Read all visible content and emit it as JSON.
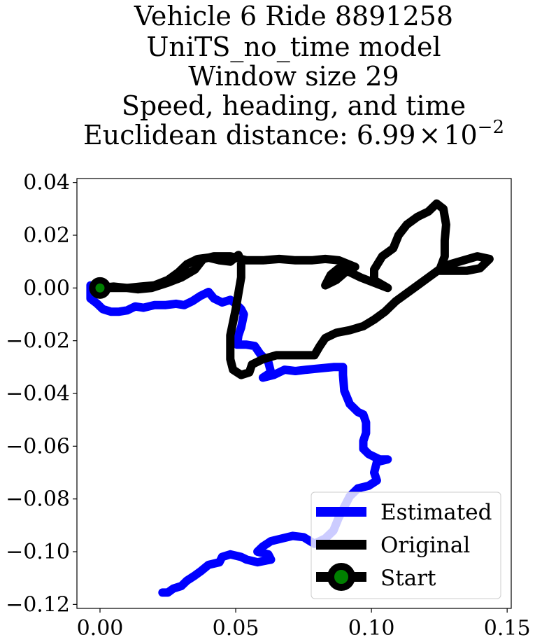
{
  "chart_data": {
    "type": "line",
    "title_lines": [
      "Vehicle 6 Ride 8891258",
      "UniTS_no_time model",
      "Window size 29",
      "Speed, heading, and time"
    ],
    "title_last_prefix": "Euclidean distance: ",
    "title_last_mantissa": "6.99",
    "title_last_times": "×",
    "title_last_base": "10",
    "title_last_exponent": "−2",
    "xlim": [
      -0.0085,
      0.1515
    ],
    "ylim": [
      -0.1215,
      0.0415
    ],
    "x_ticks": [
      {
        "value": 0.0,
        "label": "0.00"
      },
      {
        "value": 0.05,
        "label": "0.05"
      },
      {
        "value": 0.1,
        "label": "0.10"
      },
      {
        "value": 0.15,
        "label": "0.15"
      }
    ],
    "y_ticks": [
      {
        "value": 0.04,
        "label": "0.04"
      },
      {
        "value": 0.02,
        "label": "0.02"
      },
      {
        "value": 0.0,
        "label": "0.00"
      },
      {
        "value": -0.02,
        "label": "−0.02"
      },
      {
        "value": -0.04,
        "label": "−0.04"
      },
      {
        "value": -0.06,
        "label": "−0.06"
      },
      {
        "value": -0.08,
        "label": "−0.08"
      },
      {
        "value": -0.1,
        "label": "−0.10"
      },
      {
        "value": -0.12,
        "label": "−0.12"
      }
    ],
    "grid": false,
    "legend_position": "lower right",
    "series": [
      {
        "name": "Estimated",
        "color": "#0000ff",
        "points": [
          [
            -0.0035,
            0.001
          ],
          [
            -0.0035,
            -0.004
          ],
          [
            -0.001,
            -0.006
          ],
          [
            0.001,
            -0.008
          ],
          [
            0.004,
            -0.009
          ],
          [
            0.007,
            -0.009
          ],
          [
            0.01,
            -0.0085
          ],
          [
            0.013,
            -0.007
          ],
          [
            0.016,
            -0.0075
          ],
          [
            0.02,
            -0.0065
          ],
          [
            0.024,
            -0.0065
          ],
          [
            0.028,
            -0.006
          ],
          [
            0.031,
            -0.0065
          ],
          [
            0.034,
            -0.005
          ],
          [
            0.037,
            -0.003
          ],
          [
            0.04,
            -0.0015
          ],
          [
            0.042,
            -0.004
          ],
          [
            0.045,
            -0.0055
          ],
          [
            0.048,
            -0.0045
          ],
          [
            0.05,
            -0.006
          ],
          [
            0.052,
            -0.008
          ],
          [
            0.053,
            -0.01
          ],
          [
            0.052,
            -0.015
          ],
          [
            0.051,
            -0.018
          ],
          [
            0.0505,
            -0.0215
          ],
          [
            0.054,
            -0.0215
          ],
          [
            0.057,
            -0.022
          ],
          [
            0.059,
            -0.025
          ],
          [
            0.062,
            -0.028
          ],
          [
            0.063,
            -0.032
          ],
          [
            0.06,
            -0.034
          ],
          [
            0.064,
            -0.033
          ],
          [
            0.068,
            -0.031
          ],
          [
            0.072,
            -0.0315
          ],
          [
            0.076,
            -0.031
          ],
          [
            0.081,
            -0.0305
          ],
          [
            0.086,
            -0.03
          ],
          [
            0.0895,
            -0.03
          ],
          [
            0.0895,
            -0.033
          ],
          [
            0.09,
            -0.039
          ],
          [
            0.092,
            -0.044
          ],
          [
            0.095,
            -0.047
          ],
          [
            0.097,
            -0.048
          ],
          [
            0.098,
            -0.051
          ],
          [
            0.098,
            -0.055
          ],
          [
            0.097,
            -0.058
          ],
          [
            0.097,
            -0.061
          ],
          [
            0.099,
            -0.063
          ],
          [
            0.103,
            -0.065
          ],
          [
            0.106,
            -0.065
          ],
          [
            0.102,
            -0.066
          ],
          [
            0.101,
            -0.07
          ],
          [
            0.102,
            -0.073
          ],
          [
            0.099,
            -0.075
          ],
          [
            0.095,
            -0.076
          ],
          [
            0.092,
            -0.079
          ],
          [
            0.09,
            -0.083
          ],
          [
            0.088,
            -0.087
          ],
          [
            0.086,
            -0.092
          ],
          [
            0.083,
            -0.095
          ],
          [
            0.079,
            -0.097
          ],
          [
            0.075,
            -0.0945
          ],
          [
            0.071,
            -0.094
          ],
          [
            0.067,
            -0.095
          ],
          [
            0.063,
            -0.096
          ],
          [
            0.06,
            -0.098
          ],
          [
            0.058,
            -0.1
          ],
          [
            0.062,
            -0.101
          ],
          [
            0.063,
            -0.103
          ],
          [
            0.058,
            -0.104
          ],
          [
            0.054,
            -0.103
          ],
          [
            0.052,
            -0.102
          ],
          [
            0.048,
            -0.101
          ],
          [
            0.045,
            -0.102
          ],
          [
            0.044,
            -0.104
          ],
          [
            0.04,
            -0.105
          ],
          [
            0.037,
            -0.1075
          ],
          [
            0.035,
            -0.109
          ],
          [
            0.032,
            -0.111
          ],
          [
            0.03,
            -0.113
          ],
          [
            0.027,
            -0.114
          ],
          [
            0.025,
            -0.1155
          ],
          [
            0.023,
            -0.1155
          ]
        ]
      },
      {
        "name": "Original",
        "color": "#000000",
        "points": [
          [
            0.0,
            0.0
          ],
          [
            0.005,
            0.0005
          ],
          [
            0.01,
            0.0
          ],
          [
            0.015,
            0.0005
          ],
          [
            0.02,
            0.001
          ],
          [
            0.025,
            0.003
          ],
          [
            0.029,
            0.006
          ],
          [
            0.032,
            0.009
          ],
          [
            0.036,
            0.011
          ],
          [
            0.04,
            0.0115
          ],
          [
            0.044,
            0.0105
          ],
          [
            0.048,
            0.01
          ],
          [
            0.051,
            0.0125
          ],
          [
            0.052,
            0.01
          ],
          [
            0.052,
            0.004
          ],
          [
            0.051,
            -0.002
          ],
          [
            0.05,
            -0.008
          ],
          [
            0.049,
            -0.013
          ],
          [
            0.048,
            -0.018
          ],
          [
            0.048,
            -0.022
          ],
          [
            0.048,
            -0.027
          ],
          [
            0.049,
            -0.031
          ],
          [
            0.052,
            -0.033
          ],
          [
            0.055,
            -0.032
          ],
          [
            0.056,
            -0.029
          ],
          [
            0.06,
            -0.027
          ],
          [
            0.065,
            -0.0255
          ],
          [
            0.07,
            -0.0255
          ],
          [
            0.075,
            -0.0255
          ],
          [
            0.079,
            -0.0255
          ],
          [
            0.081,
            -0.022
          ],
          [
            0.083,
            -0.019
          ],
          [
            0.087,
            -0.017
          ],
          [
            0.092,
            -0.016
          ],
          [
            0.097,
            -0.0145
          ],
          [
            0.101,
            -0.012
          ],
          [
            0.105,
            -0.009
          ],
          [
            0.109,
            -0.005
          ],
          [
            0.113,
            -0.002
          ],
          [
            0.117,
            0.001
          ],
          [
            0.121,
            0.004
          ],
          [
            0.125,
            0.007
          ],
          [
            0.129,
            0.009
          ],
          [
            0.134,
            0.0105
          ],
          [
            0.139,
            0.012
          ],
          [
            0.1435,
            0.011
          ],
          [
            0.14,
            0.0075
          ],
          [
            0.135,
            0.0065
          ],
          [
            0.13,
            0.0065
          ],
          [
            0.125,
            0.0065
          ],
          [
            0.127,
            0.012
          ],
          [
            0.127,
            0.018
          ],
          [
            0.1275,
            0.024
          ],
          [
            0.1265,
            0.03
          ],
          [
            0.124,
            0.032
          ],
          [
            0.121,
            0.029
          ],
          [
            0.117,
            0.027
          ],
          [
            0.113,
            0.024
          ],
          [
            0.11,
            0.02
          ],
          [
            0.108,
            0.015
          ],
          [
            0.104,
            0.012
          ],
          [
            0.101,
            0.007
          ],
          [
            0.101,
            0.003
          ],
          [
            0.106,
            0.0
          ],
          [
            0.101,
            0.002
          ],
          [
            0.096,
            0.004
          ],
          [
            0.092,
            0.006
          ],
          [
            0.088,
            0.0075
          ],
          [
            0.085,
            0.005
          ],
          [
            0.083,
            0.001
          ],
          [
            0.087,
            0.003
          ],
          [
            0.091,
            0.0065
          ],
          [
            0.094,
            0.008
          ],
          [
            0.088,
            0.0105
          ],
          [
            0.083,
            0.011
          ],
          [
            0.078,
            0.0105
          ],
          [
            0.072,
            0.0105
          ],
          [
            0.066,
            0.011
          ],
          [
            0.06,
            0.0105
          ],
          [
            0.054,
            0.0105
          ],
          [
            0.048,
            0.012
          ],
          [
            0.042,
            0.012
          ],
          [
            0.038,
            0.011
          ],
          [
            0.035,
            0.007
          ],
          [
            0.03,
            0.004
          ],
          [
            0.025,
            0.002
          ],
          [
            0.019,
            0.0
          ],
          [
            0.014,
            -0.0005
          ],
          [
            0.01,
            0.0
          ],
          [
            0.005,
            0.0
          ],
          [
            0.0,
            0.0
          ]
        ]
      },
      {
        "name": "Start",
        "color": "#000000",
        "marker_face": "#008000",
        "points": [
          [
            0.0,
            0.0
          ]
        ]
      }
    ]
  }
}
